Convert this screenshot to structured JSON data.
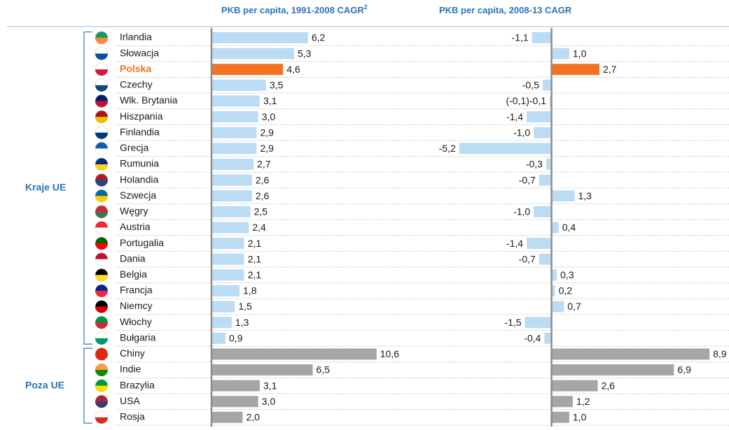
{
  "chart_data": {
    "type": "bar-horizontal-panels",
    "categories": [
      "Irlandia",
      "Słowacja",
      "Polska",
      "Czechy",
      "Wlk. Brytania",
      "Hiszpania",
      "Finlandia",
      "Grecja",
      "Rumunia",
      "Holandia",
      "Szwecja",
      "Węgry",
      "Austria",
      "Portugalia",
      "Dania",
      "Belgia",
      "Francja",
      "Niemcy",
      "Włochy",
      "Bułgaria",
      "Chiny",
      "Indie",
      "Brazylia",
      "USA",
      "Rosja"
    ],
    "groups": [
      {
        "label": "Kraje UE",
        "size": 20
      },
      {
        "label": "Poza UE",
        "size": 5
      }
    ],
    "highlight_index": 2,
    "highlight_color": "#f07424",
    "bar_colors": [
      "#bcdcf4",
      "#bcdcf4",
      "#f07424",
      "#bcdcf4",
      "#bcdcf4",
      "#bcdcf4",
      "#bcdcf4",
      "#bcdcf4",
      "#bcdcf4",
      "#bcdcf4",
      "#bcdcf4",
      "#bcdcf4",
      "#bcdcf4",
      "#bcdcf4",
      "#bcdcf4",
      "#bcdcf4",
      "#bcdcf4",
      "#bcdcf4",
      "#bcdcf4",
      "#bcdcf4",
      "#a6a6a6",
      "#a6a6a6",
      "#a6a6a6",
      "#a6a6a6",
      "#a6a6a6"
    ],
    "series": [
      {
        "name": "PKB per capita, 1991-2008 CAGR",
        "footnote": "2",
        "xlim": [
          0,
          12.5
        ],
        "values": [
          6.2,
          5.3,
          4.6,
          3.5,
          3.1,
          3.0,
          2.9,
          2.9,
          2.7,
          2.6,
          2.6,
          2.5,
          2.4,
          2.1,
          2.1,
          2.1,
          1.8,
          1.5,
          1.3,
          0.9,
          10.6,
          6.5,
          3.1,
          3.0,
          2.0
        ],
        "value_labels": [
          "6,2",
          "5,3",
          "4,6",
          "3,5",
          "3,1",
          "3,0",
          "2,9",
          "2,9",
          "2,7",
          "2,6",
          "2,6",
          "2,5",
          "2,4",
          "2,1",
          "2,1",
          "2,1",
          "1,8",
          "1,5",
          "1,3",
          "0,9",
          "10,6",
          "6,5",
          "3,1",
          "3,0",
          "2,0"
        ]
      },
      {
        "name": "PKB per capita, 2008-13 CAGR",
        "xlim": [
          -7.4,
          10.0
        ],
        "values": [
          -1.1,
          1.0,
          2.7,
          -0.5,
          -0.1,
          -1.4,
          -1.0,
          -5.2,
          -0.3,
          -0.7,
          1.3,
          -1.0,
          0.4,
          -1.4,
          -0.7,
          0.3,
          0.2,
          0.7,
          -1.5,
          -0.4,
          8.9,
          6.9,
          2.6,
          1.2,
          1.0
        ],
        "value_labels": [
          "-1,1",
          "1,0",
          "2,7",
          "-0,5",
          "(-0,1)-0,1",
          "-1,4",
          "-1,0",
          "-5,2",
          "-0,3",
          "-0,7",
          "1,3",
          "-1,0",
          "0,4",
          "-1,4",
          "-0,7",
          "0,3",
          "0,2",
          "0,7",
          "-1,5",
          "-0,4",
          "8,9",
          "6,9",
          "2,6",
          "1,2",
          "1,0"
        ]
      }
    ]
  }
}
